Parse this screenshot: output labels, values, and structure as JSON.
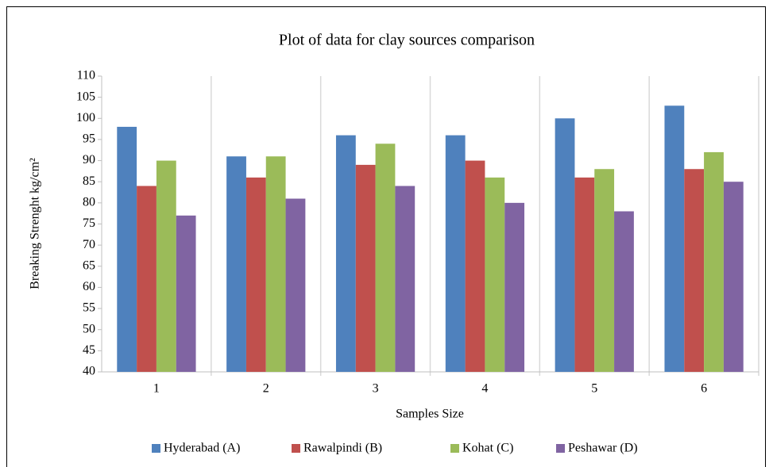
{
  "chart_data": {
    "type": "bar",
    "title": "Plot of data for clay sources comparison",
    "x_label": "Samples Size",
    "y_label": "Breaking Strenght  kg/cm²",
    "categories": [
      "1",
      "2",
      "3",
      "4",
      "5",
      "6"
    ],
    "series": [
      {
        "name": "Hyderabad (A)",
        "color": "#4f81bd",
        "values": [
          98,
          91,
          96,
          96,
          100,
          103
        ]
      },
      {
        "name": "Rawalpindi (B)",
        "color": "#c0504d",
        "values": [
          84,
          86,
          89,
          90,
          86,
          88
        ]
      },
      {
        "name": "Kohat (C)",
        "color": "#9bbb59",
        "values": [
          90,
          91,
          94,
          86,
          88,
          92
        ]
      },
      {
        "name": "Peshawar (D)",
        "color": "#8064a2",
        "values": [
          77,
          81,
          84,
          80,
          78,
          85
        ]
      }
    ],
    "ylim": [
      40,
      110
    ],
    "yticks": [
      40,
      45,
      50,
      55,
      60,
      65,
      70,
      75,
      80,
      85,
      90,
      95,
      100,
      105,
      110
    ],
    "legend": "bottom"
  }
}
